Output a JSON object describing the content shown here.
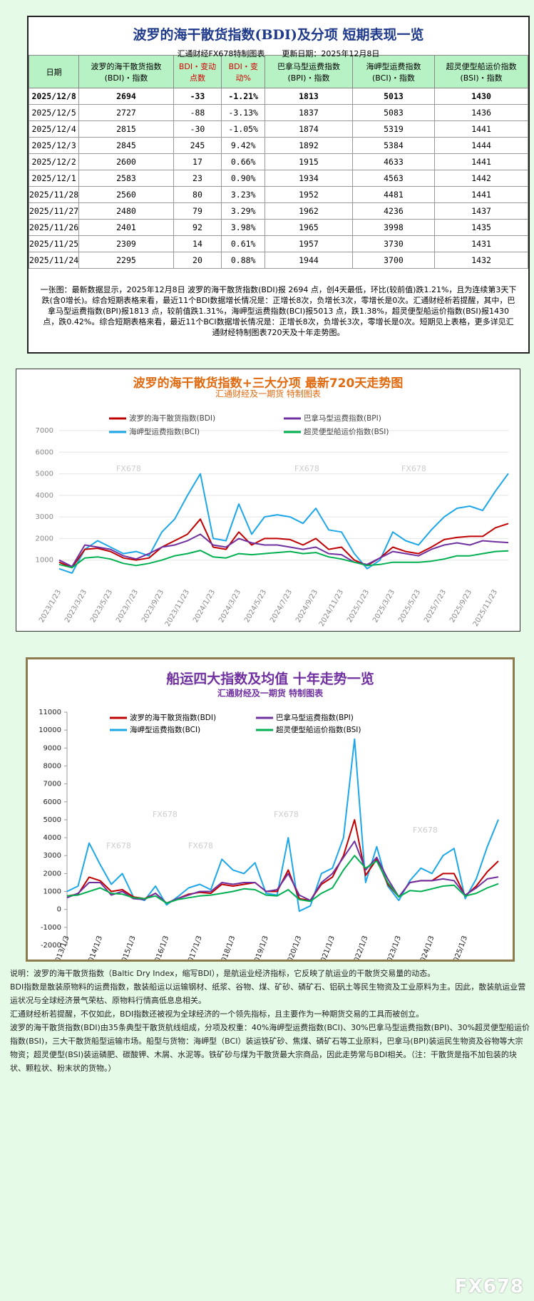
{
  "table": {
    "title": "波罗的海干散货指数(BDI)及分项  短期表现一览",
    "subtitle": "汇通财经FX678特制图表",
    "updated": "更新日期：2025年12月8日",
    "columns": [
      "日期",
      "波罗的海干散货指数(BDI)・指数",
      "BDI・变动点数",
      "BDI・变动%",
      "巴拿马型运费指数(BPI)・指数",
      "海岬型运费指数(BCI)・指数",
      "超灵便型船运价指数(BSI)・指数"
    ],
    "rows": [
      [
        "2025/12/8",
        "2694",
        "-33",
        "-1.21%",
        "1813",
        "5013",
        "1430"
      ],
      [
        "2025/12/5",
        "2727",
        "-88",
        "-3.13%",
        "1837",
        "5083",
        "1436"
      ],
      [
        "2025/12/4",
        "2815",
        "-30",
        "-1.05%",
        "1874",
        "5319",
        "1441"
      ],
      [
        "2025/12/3",
        "2845",
        "245",
        "9.42%",
        "1892",
        "5384",
        "1444"
      ],
      [
        "2025/12/2",
        "2600",
        "17",
        "0.66%",
        "1915",
        "4633",
        "1441"
      ],
      [
        "2025/12/1",
        "2583",
        "23",
        "0.90%",
        "1934",
        "4563",
        "1442"
      ],
      [
        "2025/11/28",
        "2560",
        "80",
        "3.23%",
        "1952",
        "4481",
        "1441"
      ],
      [
        "2025/11/27",
        "2480",
        "79",
        "3.29%",
        "1962",
        "4236",
        "1437"
      ],
      [
        "2025/11/26",
        "2401",
        "92",
        "3.98%",
        "1965",
        "3998",
        "1435"
      ],
      [
        "2025/11/25",
        "2309",
        "14",
        "0.61%",
        "1957",
        "3730",
        "1431"
      ],
      [
        "2025/11/24",
        "2295",
        "20",
        "0.88%",
        "1944",
        "3700",
        "1432"
      ]
    ],
    "summary": "一张图：最新数据显示，2025年12月8日 波罗的海干散货指数(BDI)报 2694 点，创4天最低，环比(较前值)跌1.21%，且为连续第3天下跌(含0增长)。综合短期表格来看，最近11个BDI数据增长情况是：正增长8次，负增长3次，零增长是0次。汇通财经析若提醒，其中，巴拿马型运费指数(BPI)报1813 点，较前值跌1.31%，海岬型运费指数(BCI)报5013 点，跌1.38%，超灵便型船运价指数(BSI)报1430 点，跌0.42%。综合短期表格来看，最近11个BCI数据增长情况是：正增长8次，负增长3次，零增长是0次。短期见上表格，更多详见汇通财经特制图表720天及十年走势图。"
  },
  "watermark": "FX678",
  "chart_data": [
    {
      "type": "line",
      "title": "波罗的海干散货指数+三大分项  最新720天走势图",
      "subtitle": "汇通财经及一期货 特制图表",
      "grid": true,
      "categories": [
        "2023/1/23",
        null,
        "2023/3/23",
        null,
        "2023/5/23",
        null,
        "2023/7/23",
        null,
        "2023/9/23",
        null,
        "2023/11/23",
        null,
        "2024/1/23",
        null,
        "2024/3/23",
        null,
        "2024/5/23",
        null,
        "2024/7/23",
        null,
        "2024/9/23",
        null,
        "2024/11/23",
        null,
        "2025/1/23",
        null,
        "2025/3/23",
        null,
        "2025/5/23",
        null,
        "2025/7/23",
        null,
        "2025/9/23",
        null,
        "2025/11/23",
        null
      ],
      "ylim": [
        0,
        7000
      ],
      "yticks": [
        1000,
        2000,
        3000,
        4000,
        5000,
        6000,
        7000
      ],
      "series": [
        {
          "name": "波罗的海干散货指数(BDI)",
          "color": "#c00000",
          "values": [
            900,
            650,
            1500,
            1550,
            1400,
            1100,
            1000,
            1100,
            1600,
            1900,
            2200,
            2900,
            1600,
            1500,
            2300,
            1700,
            2000,
            2000,
            1950,
            1700,
            2000,
            1500,
            1600,
            1000,
            750,
            1100,
            1600,
            1400,
            1300,
            1600,
            1950,
            2050,
            2100,
            2100,
            2500,
            2694
          ]
        },
        {
          "name": "巴拿马型运费指数(BPI)",
          "color": "#7030a0",
          "values": [
            1000,
            700,
            1700,
            1600,
            1500,
            1200,
            1050,
            1300,
            1600,
            1700,
            1900,
            2200,
            1700,
            1600,
            2000,
            1800,
            1700,
            1700,
            1600,
            1500,
            1600,
            1300,
            1250,
            900,
            800,
            1100,
            1400,
            1300,
            1200,
            1500,
            1700,
            1800,
            1700,
            1900,
            1850,
            1813
          ]
        },
        {
          "name": "海岬型运费指数(BCI)",
          "color": "#1ea7e8",
          "values": [
            600,
            400,
            1500,
            1900,
            1600,
            1300,
            1400,
            1200,
            2300,
            2900,
            4000,
            5000,
            2000,
            1900,
            3600,
            2200,
            3000,
            3100,
            3000,
            2700,
            3400,
            2400,
            2300,
            1300,
            600,
            1000,
            2300,
            1900,
            1700,
            2400,
            3000,
            3400,
            3500,
            3300,
            4200,
            5013
          ]
        },
        {
          "name": "超灵便型船运价指数(BSI)",
          "color": "#00b050",
          "values": [
            800,
            650,
            1100,
            1150,
            1050,
            850,
            750,
            850,
            1000,
            1200,
            1300,
            1450,
            1150,
            1100,
            1300,
            1250,
            1300,
            1350,
            1400,
            1300,
            1350,
            1150,
            1050,
            900,
            750,
            800,
            900,
            900,
            900,
            950,
            1050,
            1200,
            1200,
            1300,
            1400,
            1430
          ]
        }
      ]
    },
    {
      "type": "line",
      "title": "船运四大指数及均值 十年走势一览",
      "subtitle": "汇通财经及一期货 特制图表",
      "grid": false,
      "categories": [
        "2013/1/3",
        null,
        null,
        "2014/1/3",
        null,
        null,
        "2015/1/3",
        null,
        null,
        "2016/1/3",
        null,
        null,
        "2017/1/3",
        null,
        null,
        "2018/1/3",
        null,
        null,
        "2019/1/3",
        null,
        null,
        "2020/1/3",
        null,
        null,
        "2021/1/3",
        null,
        null,
        "2022/1/3",
        null,
        null,
        "2023/1/3",
        null,
        null,
        "2024/1/3",
        null,
        null,
        "2025/1/3",
        null,
        null,
        null
      ],
      "ylim": [
        -2000,
        11000
      ],
      "yticks": [
        -2000,
        -1000,
        0,
        1000,
        2000,
        3000,
        4000,
        5000,
        6000,
        7000,
        8000,
        9000,
        10000,
        11000
      ],
      "series": [
        {
          "name": "波罗的海干散货指数(BDI)",
          "color": "#c00000",
          "values": [
            750,
            850,
            1800,
            1600,
            1000,
            1100,
            700,
            600,
            900,
            350,
            600,
            850,
            950,
            900,
            1400,
            1300,
            1400,
            1500,
            1000,
            1000,
            2200,
            600,
            500,
            1400,
            1800,
            3000,
            5000,
            1900,
            2800,
            1400,
            700,
            1500,
            1600,
            1600,
            2000,
            2000,
            750,
            1300,
            2100,
            2694
          ]
        },
        {
          "name": "巴拿马型运费指数(BPI)",
          "color": "#7030a0",
          "values": [
            650,
            900,
            1500,
            1500,
            800,
            1000,
            600,
            550,
            900,
            350,
            600,
            800,
            1000,
            1000,
            1500,
            1400,
            1500,
            1500,
            1000,
            1100,
            2000,
            800,
            500,
            1500,
            2000,
            2900,
            3800,
            2200,
            2900,
            1700,
            700,
            1500,
            1600,
            1600,
            1700,
            1600,
            800,
            1200,
            1700,
            1813
          ]
        },
        {
          "name": "海岬型运费指数(BCI)",
          "color": "#1ea7e8",
          "values": [
            1000,
            1300,
            3700,
            2500,
            1400,
            2000,
            700,
            500,
            1300,
            250,
            700,
            1200,
            1400,
            1100,
            2800,
            2200,
            2000,
            2600,
            900,
            800,
            4000,
            -100,
            200,
            2000,
            2300,
            4000,
            9500,
            1500,
            3500,
            1300,
            500,
            1600,
            2300,
            2000,
            3000,
            3400,
            600,
            1700,
            3500,
            5013
          ]
        },
        {
          "name": "超灵便型船运价指数(BSI)",
          "color": "#00b050",
          "values": [
            750,
            800,
            1000,
            1200,
            900,
            850,
            650,
            600,
            750,
            350,
            550,
            650,
            750,
            800,
            900,
            1000,
            1150,
            1100,
            800,
            750,
            1100,
            550,
            450,
            900,
            1200,
            2200,
            3000,
            2300,
            2700,
            1500,
            700,
            1050,
            1000,
            1150,
            1300,
            1350,
            750,
            900,
            1200,
            1430
          ]
        }
      ]
    }
  ],
  "notes": [
    "说明：波罗的海干散货指数（Baltic Dry Index，缩写BDI），是航运业经济指标，它反映了航运业的干散货交易量的动态。",
    "BDI指数是散装原物料的运费指数，散装船运以运输钢材、纸浆、谷物、煤、矿砂、磷矿石、铝矾土等民生物资及工业原料为主。因此，散装航运业营运状况与全球经济景气荣枯、原物料行情高低息息相关。",
    "汇通财经析若提醒，不仅如此，BDI指数还被视为全球经济的一个领先指标，且主要作为一种期货交易的工具而被创立。",
    "波罗的海干散货指数(BDI)由35条典型干散货航线组成，分项及权重：40%海岬型运费指数(BCI)、30%巴拿马型运费指数(BPI)、30%超灵便型船运价指数(BSI)，三大干散货船型运输市场。船型与货物：海岬型（BCI）装运铁矿砂、焦煤、磷矿石等工业原料，巴拿马(BPI)装运民生物资及谷物等大宗物资；超灵便型(BSI)装运磷肥、碳酸钾、木屑、水泥等。铁矿砂与煤为干散货最大宗商品，因此走势常与BDI相关。（注：干散货是指不加包装的块状、颗粒状、粉末状的货物。）"
  ]
}
